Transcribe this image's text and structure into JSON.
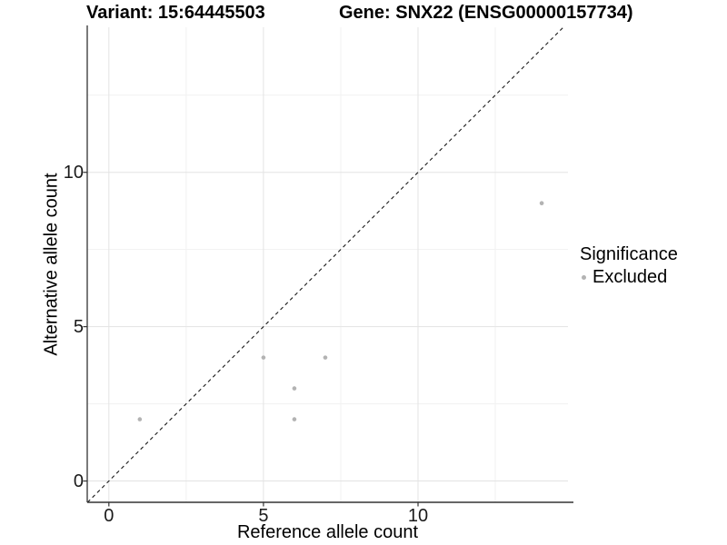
{
  "header": {
    "variant_title": "Variant: 15:64445503",
    "gene_title": "Gene: SNX22 (ENSG00000157734)"
  },
  "chart_data": {
    "type": "scatter",
    "title_left": "Variant: 15:64445503",
    "title_right": "Gene: SNX22 (ENSG00000157734)",
    "xlabel": "Reference allele count",
    "ylabel": "Alternative allele count",
    "xlim": [
      -0.7,
      14.85
    ],
    "ylim": [
      -0.69,
      14.7
    ],
    "x_major_ticks": [
      0,
      5,
      10
    ],
    "y_major_ticks": [
      0,
      5,
      10
    ],
    "x_minor_gridlines": [
      2.5,
      7.5,
      12.5
    ],
    "y_minor_gridlines": [
      2.5,
      7.5,
      12.5
    ],
    "grid": "major-and-minor",
    "series": [
      {
        "name": "Excluded",
        "color": "#b3b3b3",
        "points": [
          [
            1,
            2
          ],
          [
            5,
            4
          ],
          [
            6,
            2
          ],
          [
            6,
            3
          ],
          [
            7,
            4
          ],
          [
            14,
            9
          ]
        ]
      }
    ],
    "reference_line": {
      "type": "identity-diagonal",
      "style": "dashed",
      "color": "#1a1a1a"
    },
    "legend": {
      "title": "Significance",
      "position": "right",
      "items": [
        {
          "label": "Excluded",
          "color": "#b3b3b3"
        }
      ]
    }
  },
  "colors": {
    "background": "#ffffff",
    "major_grid": "#e3e3e3",
    "minor_grid": "#f1f1f1",
    "axis_line": "#333333",
    "point": "#b3b3b3",
    "text": "#000000"
  }
}
